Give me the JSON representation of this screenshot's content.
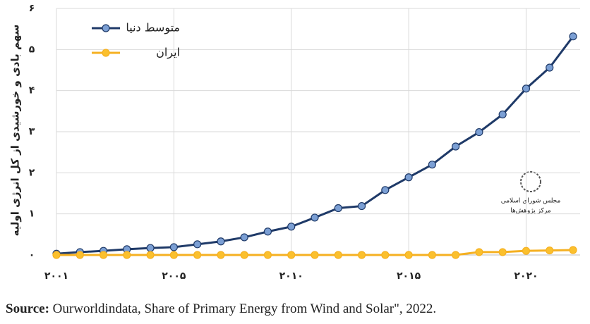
{
  "chart_data": {
    "type": "line",
    "y_label": "سهم بادی و خورشیدی از کل انرژی اولیه",
    "categories": [
      "۲۰۰۱",
      null,
      null,
      null,
      null,
      "۲۰۰۵",
      null,
      null,
      null,
      null,
      "۲۰۱۰",
      null,
      null,
      null,
      null,
      "۲۰۱۵",
      null,
      null,
      null,
      null,
      "۲۰۲۰",
      null,
      null
    ],
    "series": [
      {
        "name": "متوسط دنیا",
        "color": "#1f3a68",
        "marker_color": "#7b9fd4",
        "values": [
          0.03,
          0.07,
          0.1,
          0.14,
          0.17,
          0.19,
          0.26,
          0.33,
          0.43,
          0.57,
          0.69,
          0.91,
          1.14,
          1.19,
          1.58,
          1.89,
          2.2,
          2.64,
          2.99,
          3.42,
          4.05,
          4.56,
          5.32
        ]
      },
      {
        "name": "ایران",
        "color": "#f5b021",
        "marker_color": "#fbc02d",
        "values": [
          0,
          0,
          0,
          0,
          0,
          0,
          0,
          0,
          0,
          0,
          0,
          0,
          0,
          0,
          0,
          0,
          0,
          0,
          0.07,
          0.07,
          0.1,
          0.11,
          0.12
        ]
      }
    ],
    "ylim": [
      0,
      6
    ],
    "yticks": [
      {
        "value": 0,
        "label": "۰"
      },
      {
        "value": 1,
        "label": "۱"
      },
      {
        "value": 2,
        "label": "۲"
      },
      {
        "value": 3,
        "label": "۳"
      },
      {
        "value": 4,
        "label": "۴"
      },
      {
        "value": 5,
        "label": "۵"
      },
      {
        "value": 6,
        "label": "۶"
      }
    ],
    "grid": true,
    "legend": "upper left",
    "logo": [
      "مجلس شورای اسلامی",
      "مرکز پژوهش‌ها"
    ],
    "source_label": "Source:",
    "source_text": " Ourworldindata, Share of Primary Energy from Wind and Solar\", 2022."
  }
}
